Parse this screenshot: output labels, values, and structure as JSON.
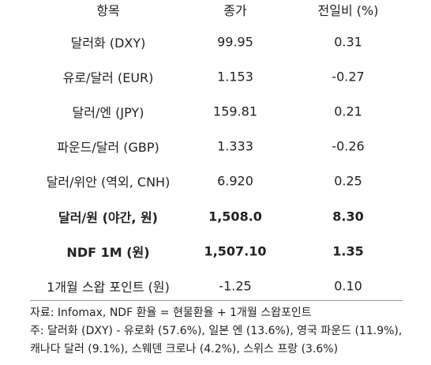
{
  "table": {
    "header": [
      "항목",
      "종가",
      "전일비 (%)"
    ],
    "rows": [
      [
        "달러화 (DXY)",
        "99.95",
        "0.31"
      ],
      [
        "유로/달러 (EUR)",
        "1.153",
        "-0.27"
      ],
      [
        "달러/엔 (JPY)",
        "159.81",
        "0.21"
      ],
      [
        "파운드/달러 (GBP)",
        "1.333",
        "-0.26"
      ],
      [
        "달러/위안 (역외, CNH)",
        "6.920",
        "0.25"
      ],
      [
        "달러/원 (야간, 원)",
        "1,508.0",
        "8.30"
      ],
      [
        "NDF 1M (원)",
        "1,507.10",
        "1.35"
      ],
      [
        "1개월 스왑 포인트 (원)",
        "-1.25",
        "0.10"
      ]
    ]
  },
  "notes": [
    "자료: Infomax, NDF 환율 = 현물환율 + 1개월 스왑포인트",
    "주: 달러화 (DXY) - 유로화 (57.6%), 일본 엔 (13.6%), 영국 파운드 (11.9%),",
    "캐나다 달러 (9.1%), 스웨덴 크로나 (4.2%), 스위스 프랑 (3.6%)"
  ]
}
